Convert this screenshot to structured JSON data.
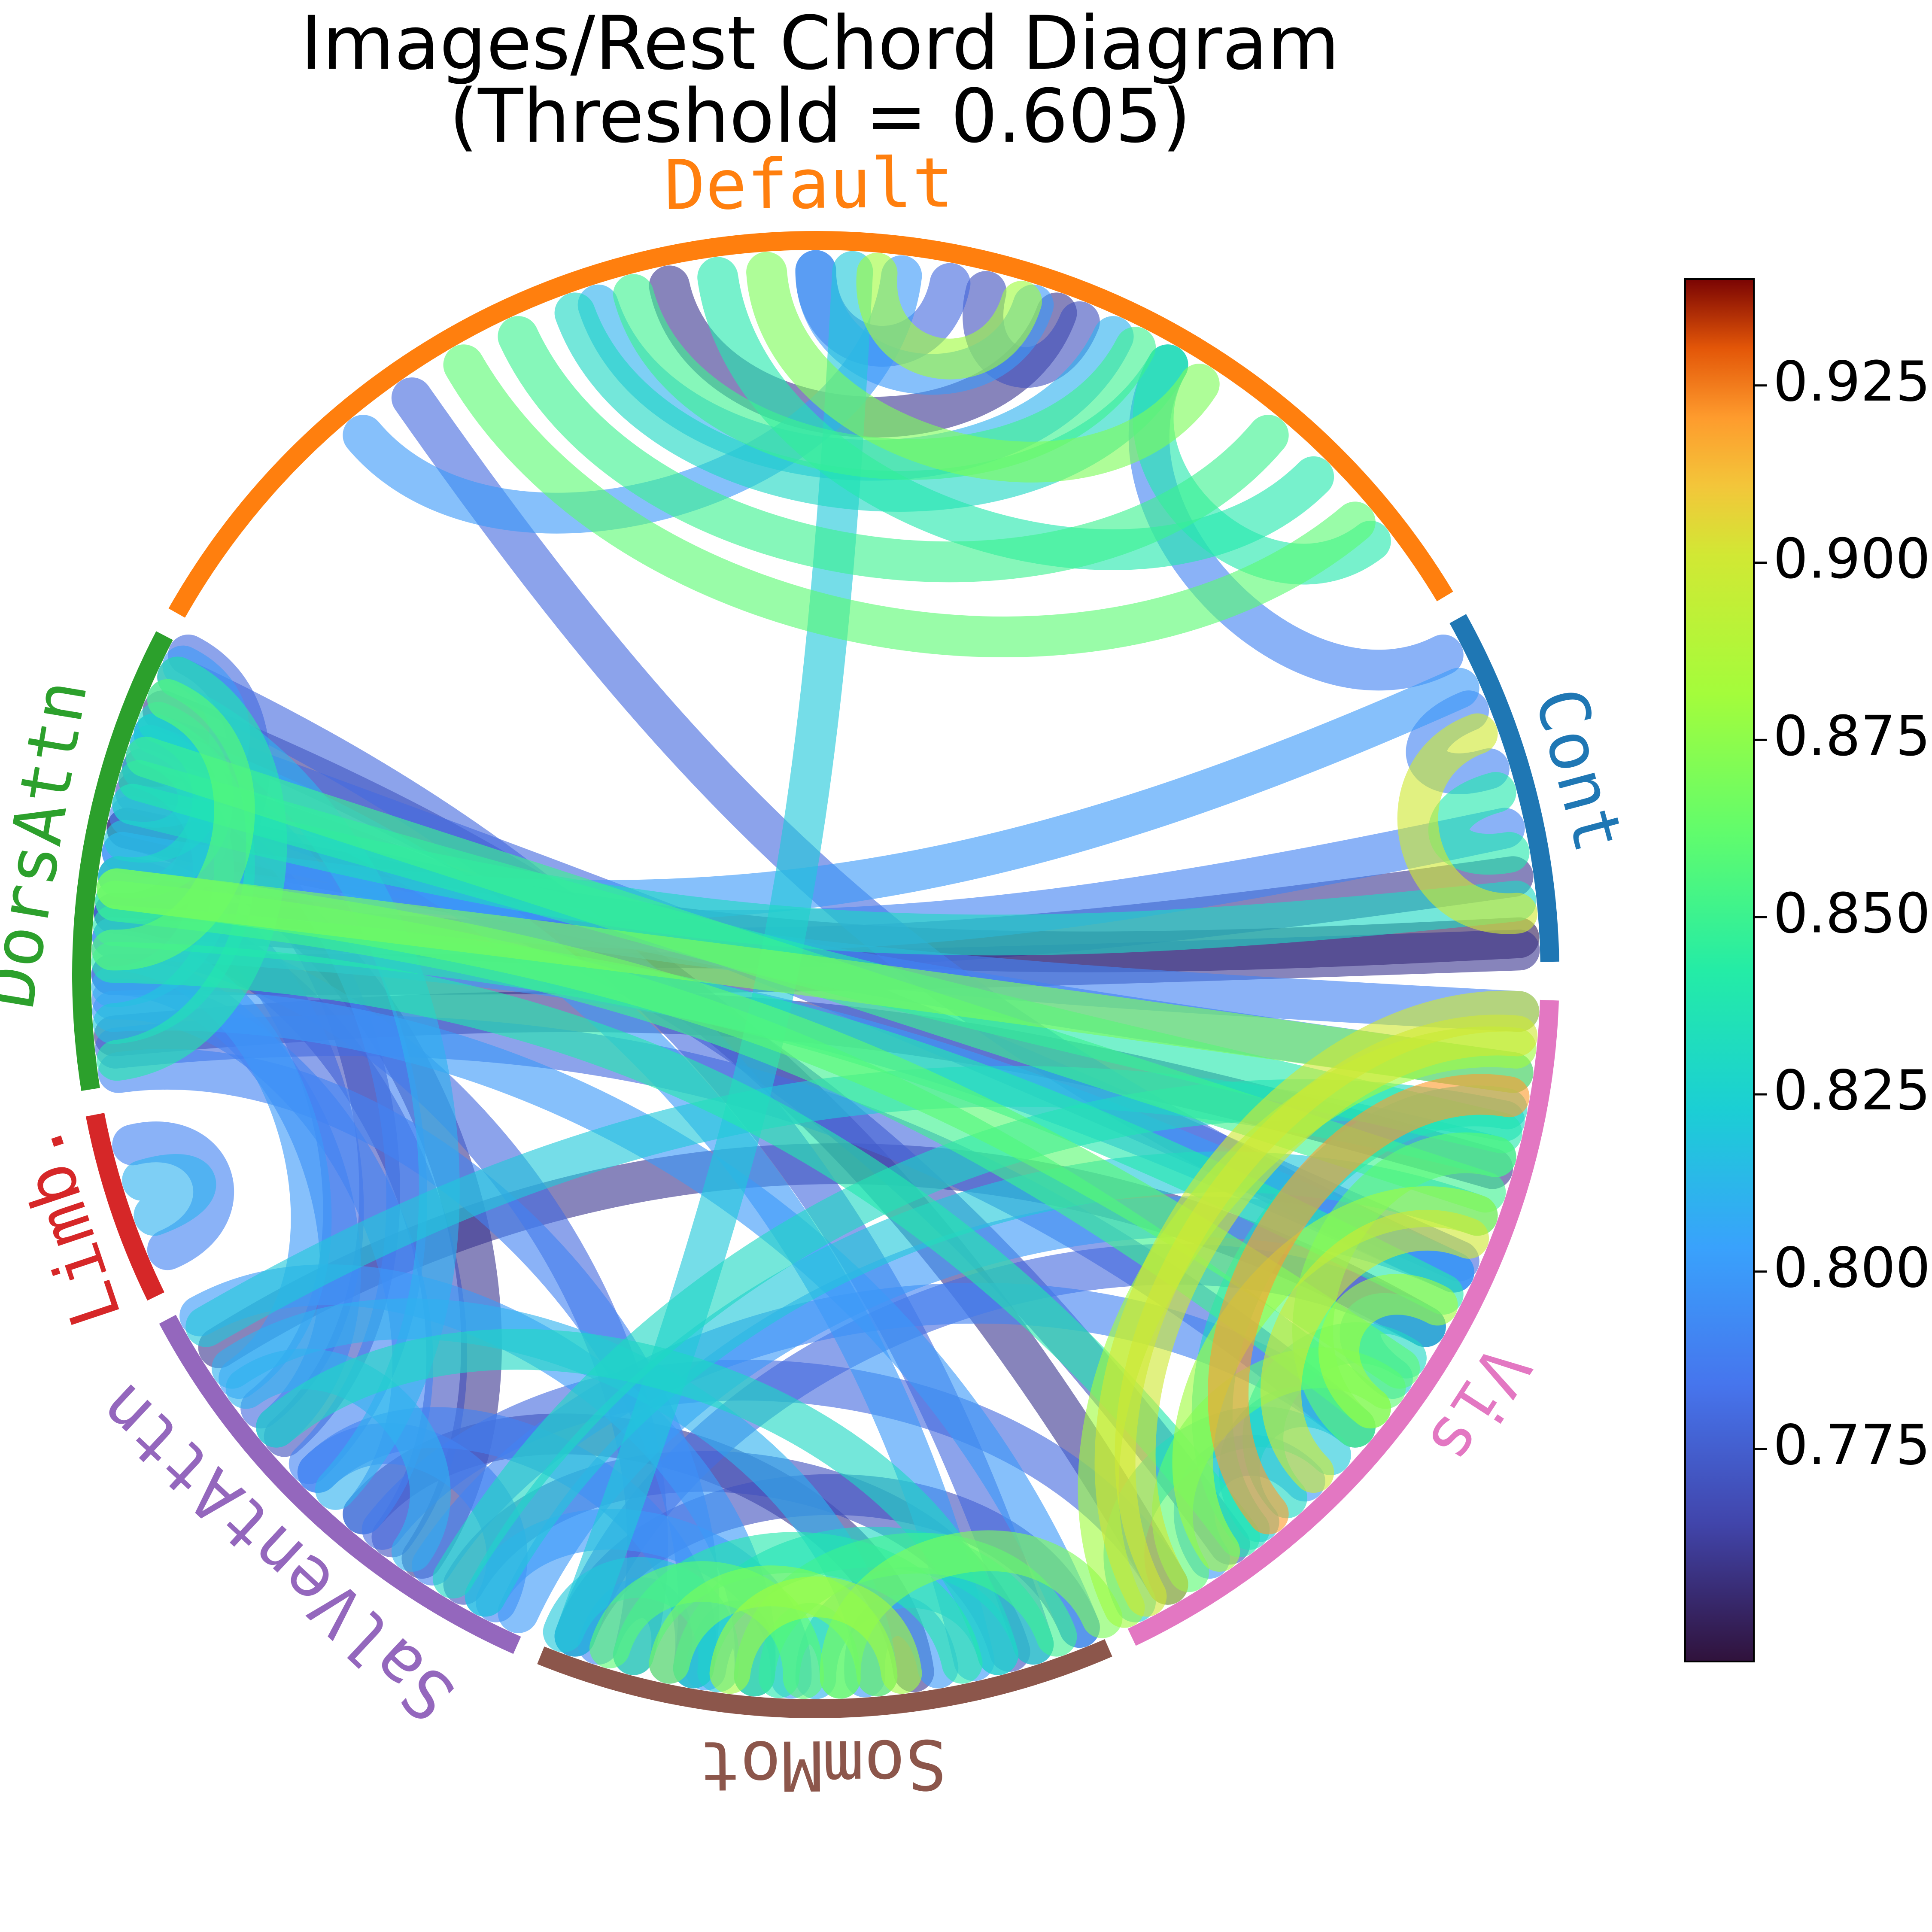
{
  "title": {
    "line1": "Images/Rest Chord Diagram",
    "line2": "(Threshold = 0.605)"
  },
  "network_segments": [
    {
      "name": "Default",
      "color": "#ff7f0e",
      "start_deg": 209.5,
      "end_deg": 329.0,
      "label_deg": 269.5
    },
    {
      "name": "Cont",
      "color": "#1f77b4",
      "start_deg": 331.0,
      "end_deg": 359.0,
      "label_deg": 345.0
    },
    {
      "name": "Vis",
      "color": "#e377c2",
      "start_deg": 2.0,
      "end_deg": 64.5,
      "label_deg": 33.0
    },
    {
      "name": "SomMot",
      "color": "#8c564b",
      "start_deg": 66.5,
      "end_deg": 112.0,
      "label_deg": 89.5
    },
    {
      "name": "SalVentAttn",
      "color": "#9467bd",
      "start_deg": 114.0,
      "end_deg": 152.0,
      "label_deg": 133.0
    },
    {
      "name": "Limb.",
      "color": "#d62728",
      "start_deg": 154.0,
      "end_deg": 169.0,
      "label_deg": 161.5
    },
    {
      "name": "DorsAttn",
      "color": "#2ca02c",
      "start_deg": 171.0,
      "end_deg": 207.5,
      "label_deg": 189.5
    }
  ],
  "colormap": {
    "name": "turbo",
    "vmin": 0.745,
    "vmax": 0.94,
    "ticks": [
      "0.775",
      "0.800",
      "0.825",
      "0.850",
      "0.875",
      "0.900",
      "0.925"
    ],
    "tick_values": [
      0.775,
      0.8,
      0.825,
      0.85,
      0.875,
      0.9,
      0.925
    ]
  },
  "chord_data": [
    [
      277,
      230,
      0.8
    ],
    [
      255,
      297,
      0.85
    ],
    [
      262,
      315,
      0.84
    ],
    [
      240,
      320,
      0.86
    ],
    [
      284,
      292,
      0.77
    ],
    [
      270,
      281,
      0.78
    ],
    [
      266,
      303,
      0.87
    ],
    [
      250,
      300,
      0.83
    ],
    [
      245,
      310,
      0.85
    ],
    [
      275,
      287,
      0.88
    ],
    [
      258,
      290,
      0.76
    ],
    [
      300,
      322,
      0.84
    ],
    [
      235,
      25,
      0.78
    ],
    [
      273,
      110,
      0.82
    ],
    [
      288,
      270,
      0.8
    ],
    [
      295,
      252,
      0.81
    ],
    [
      340,
      355,
      0.9
    ],
    [
      345,
      350,
      0.84
    ],
    [
      333,
      300,
      0.79
    ],
    [
      336,
      190,
      0.8
    ],
    [
      338,
      343,
      0.79
    ],
    [
      352,
      185,
      0.76
    ],
    [
      357,
      192,
      0.75
    ],
    [
      348,
      188,
      0.79
    ],
    [
      354,
      194,
      0.83
    ],
    [
      358,
      180,
      0.76
    ],
    [
      3,
      190,
      0.79
    ],
    [
      5,
      60,
      0.9
    ],
    [
      8,
      187,
      0.87
    ],
    [
      10,
      50,
      0.92
    ],
    [
      13,
      196,
      0.84
    ],
    [
      15,
      40,
      0.86
    ],
    [
      18,
      198,
      0.85
    ],
    [
      20,
      55,
      0.88
    ],
    [
      22,
      45,
      0.9
    ],
    [
      25,
      183,
      0.8
    ],
    [
      28,
      38,
      0.88
    ],
    [
      30,
      35,
      0.82
    ],
    [
      33,
      48,
      0.83
    ],
    [
      36,
      58,
      0.86
    ],
    [
      40,
      51,
      0.82
    ],
    [
      43,
      63,
      0.82
    ],
    [
      46,
      56,
      0.8
    ],
    [
      3,
      62,
      0.9
    ],
    [
      6,
      64,
      0.88
    ],
    [
      11,
      52,
      0.83
    ],
    [
      30,
      110,
      0.78
    ],
    [
      16,
      175,
      0.76
    ],
    [
      24,
      200,
      0.78
    ],
    [
      38,
      186,
      0.85
    ],
    [
      53,
      181,
      0.84
    ],
    [
      68,
      110,
      0.77
    ],
    [
      70,
      95,
      0.85
    ],
    [
      72,
      100,
      0.83
    ],
    [
      75,
      90,
      0.81
    ],
    [
      78,
      105,
      0.84
    ],
    [
      80,
      86,
      0.8
    ],
    [
      83,
      97,
      0.88
    ],
    [
      85,
      102,
      0.87
    ],
    [
      88,
      93,
      0.84
    ],
    [
      91,
      107,
      0.86
    ],
    [
      95,
      99,
      0.8
    ],
    [
      98,
      111,
      0.82
    ],
    [
      102,
      108,
      0.79
    ],
    [
      74,
      120,
      0.77
    ],
    [
      82,
      130,
      0.76
    ],
    [
      92,
      118,
      0.8
    ],
    [
      100,
      135,
      0.79
    ],
    [
      66,
      88,
      0.87
    ],
    [
      77,
      199,
      0.8
    ],
    [
      105,
      183,
      0.78
    ],
    [
      115,
      25,
      0.8
    ],
    [
      118,
      20,
      0.82
    ],
    [
      121,
      12,
      0.83
    ],
    [
      124,
      192,
      0.76
    ],
    [
      127,
      185,
      0.77
    ],
    [
      130,
      178,
      0.79
    ],
    [
      133,
      203,
      0.81
    ],
    [
      136,
      198,
      0.79
    ],
    [
      139,
      195,
      0.77
    ],
    [
      142,
      188,
      0.78
    ],
    [
      145,
      182,
      0.8
    ],
    [
      148,
      30,
      0.76
    ],
    [
      150,
      15,
      0.82
    ],
    [
      123,
      40,
      0.79
    ],
    [
      128,
      60,
      0.78
    ],
    [
      140,
      75,
      0.83
    ],
    [
      146,
      85,
      0.81
    ],
    [
      151,
      95,
      0.8
    ],
    [
      117,
      135,
      0.79
    ],
    [
      125,
      144,
      0.81
    ],
    [
      157,
      166,
      0.79
    ],
    [
      160,
      163,
      0.81
    ],
    [
      173,
      205,
      0.84
    ],
    [
      176,
      200,
      0.82
    ],
    [
      179,
      197,
      0.81
    ],
    [
      182,
      203,
      0.86
    ],
    [
      185,
      207,
      0.78
    ],
    [
      188,
      201,
      0.83
    ],
    [
      191,
      199,
      0.82
    ],
    [
      194,
      206,
      0.8
    ],
    [
      197,
      185,
      0.75
    ],
    [
      200,
      186,
      0.81
    ],
    [
      174,
      40,
      0.78
    ],
    [
      177,
      68,
      0.8
    ],
    [
      180,
      140,
      0.79
    ],
    [
      184,
      27,
      0.84
    ],
    [
      187,
      34,
      0.86
    ],
    [
      193,
      8,
      0.79
    ],
    [
      196,
      54,
      0.77
    ],
    [
      202,
      60,
      0.76
    ],
    [
      205,
      72,
      0.78
    ],
    [
      172,
      100,
      0.79
    ]
  ]
}
